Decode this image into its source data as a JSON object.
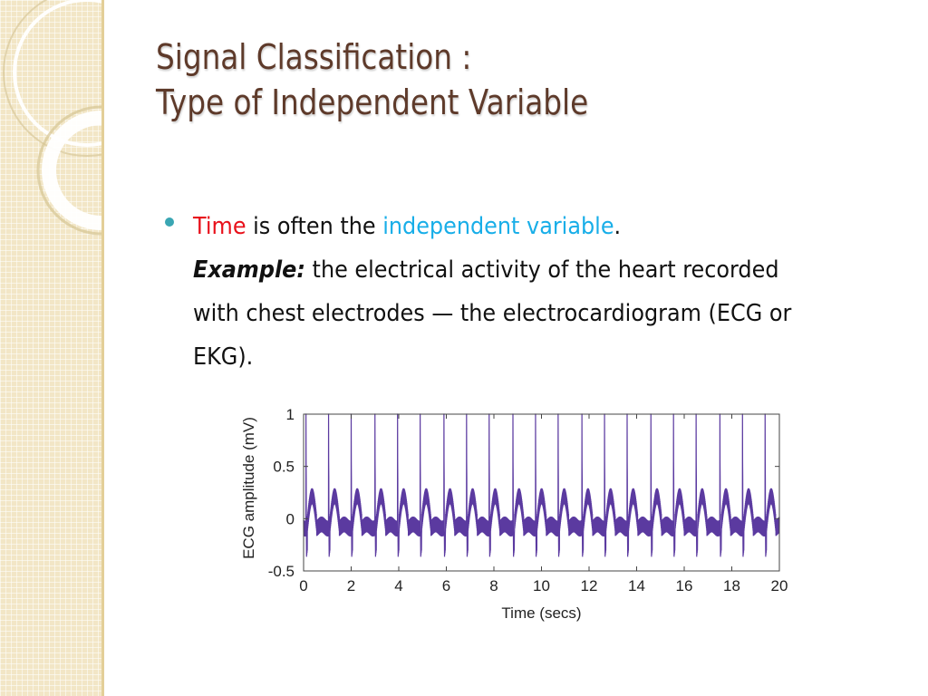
{
  "slide": {
    "title_line1": "Signal Classification :",
    "title_line2": "Type of Independent Variable"
  },
  "bullet": {
    "time_word": "Time",
    "text_1": " is often the ",
    "highlight": "independent variable",
    "text_2": ".",
    "example_label": "Example:",
    "example_text": " the electrical activity of the heart recorded with chest electrodes — the electrocardiogram (ECG or EKG)."
  },
  "colors": {
    "title": "#5e3a2a",
    "time_word": "#e8101a",
    "highlight": "#18aee8",
    "bullet": "#3aa6b3",
    "trace": "#5b3aa0",
    "band": "#f2e6c6"
  },
  "decoration": {
    "side_band": "cream-grid-band",
    "rings": "white-ring-ornaments"
  },
  "chart_data": {
    "type": "line",
    "title": "",
    "xlabel": "Time (secs)",
    "ylabel": "ECG amplitude (mV)",
    "xlim": [
      0,
      20
    ],
    "ylim": [
      -0.5,
      1
    ],
    "xticks": [
      0,
      2,
      4,
      6,
      8,
      10,
      12,
      14,
      16,
      18,
      20
    ],
    "yticks": [
      -0.5,
      0,
      0.5,
      1
    ],
    "ytick_labels": [
      "-0.5",
      "0",
      "0.5",
      "1"
    ],
    "grid": false,
    "legend": "none",
    "series": [
      {
        "beat_times": [
          0.1,
          1.05,
          2.0,
          3.0,
          3.95,
          4.9,
          5.9,
          6.85,
          7.8,
          8.8,
          9.75,
          10.7,
          11.7,
          12.65,
          13.6,
          14.6,
          15.55,
          16.5,
          17.5,
          18.45,
          19.4
        ],
        "r_peak": 0.93,
        "baseline_range": [
          -0.25,
          0.28
        ]
      }
    ]
  }
}
